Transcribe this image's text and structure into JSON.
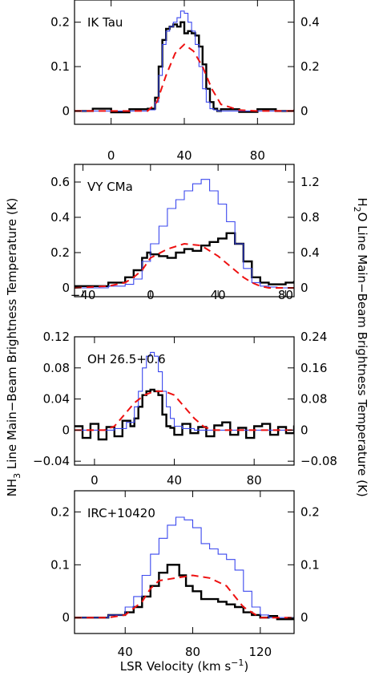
{
  "chart_data": {
    "type": "line",
    "style": {
      "nh3_color": "#000000",
      "h2o_color": "#3b48ee",
      "model_color": "#ee1111",
      "model_dash": "dashed",
      "render": "histogram-step"
    },
    "ylabel_left": {
      "before": "NH",
      "sub": "3",
      "after": " Line Main−Beam Brightness Temperature (K)"
    },
    "ylabel_right": {
      "before": "H",
      "sub": "2",
      "after": "O Line Main−Beam Brightness Temperature (K)"
    },
    "xlabel": {
      "before": "LSR Velocity (km s",
      "sup": "−1",
      "after": ")"
    },
    "panels": [
      {
        "name": "IK Tau",
        "xlim": [
          -20,
          100
        ],
        "ylim_left": [
          -0.03,
          0.25
        ],
        "ylim_right": [
          -0.06,
          0.5
        ],
        "xticks": [
          0,
          40,
          80
        ],
        "xtick_labels": [
          "0",
          "40",
          "80"
        ],
        "yticks_left": [
          0,
          0.1,
          0.2
        ],
        "ytick_labels_left": [
          "0",
          "0.1",
          "0.2"
        ],
        "yticks_right": [
          0,
          0.2,
          0.4
        ],
        "ytick_labels_right": [
          "0",
          "0.2",
          "0.4"
        ],
        "series": [
          {
            "role": "nh3",
            "x": [
              -20,
              -10,
              0,
              10,
              20,
              24,
              26,
              28,
              30,
              32,
              34,
              36,
              38,
              40,
              42,
              44,
              46,
              48,
              50,
              52,
              54,
              56,
              58,
              60,
              70,
              80,
              90,
              100
            ],
            "y": [
              0,
              0.005,
              -0.003,
              0.004,
              0.005,
              0.03,
              0.1,
              0.16,
              0.185,
              0.19,
              0.195,
              0.19,
              0.2,
              0.175,
              0.18,
              0.175,
              0.17,
              0.145,
              0.105,
              0.05,
              0.02,
              0.005,
              0,
              0.004,
              -0.002,
              0.004,
              0,
              0.003
            ]
          },
          {
            "role": "h2o",
            "x": [
              -20,
              -10,
              0,
              10,
              20,
              24,
              26,
              28,
              30,
              32,
              34,
              36,
              38,
              40,
              42,
              44,
              46,
              48,
              50,
              52,
              54,
              56,
              58,
              60,
              70,
              80,
              90,
              100
            ],
            "y": [
              0,
              0,
              0,
              0,
              0.005,
              0.04,
              0.16,
              0.3,
              0.36,
              0.38,
              0.4,
              0.42,
              0.45,
              0.44,
              0.4,
              0.36,
              0.3,
              0.2,
              0.1,
              0.04,
              0.01,
              0.005,
              0,
              0,
              0,
              0,
              0,
              0
            ]
          },
          {
            "role": "model",
            "x": [
              -20,
              0,
              20,
              25,
              30,
              35,
              40,
              45,
              50,
              55,
              60,
              70,
              80,
              100
            ],
            "y": [
              0,
              0,
              0,
              0.02,
              0.08,
              0.13,
              0.15,
              0.135,
              0.1,
              0.05,
              0.015,
              0.002,
              0,
              0
            ]
          }
        ]
      },
      {
        "name": "VY CMa",
        "xlim": [
          -45,
          85
        ],
        "ylim_left": [
          -0.05,
          0.7
        ],
        "ylim_right": [
          -0.1,
          1.4
        ],
        "xticks": [
          -40,
          0,
          40,
          80
        ],
        "xtick_labels": [
          "−40",
          "0",
          "40",
          "80"
        ],
        "yticks_left": [
          0,
          0.2,
          0.4,
          0.6
        ],
        "ytick_labels_left": [
          "0",
          "0.2",
          "0.4",
          "0.6"
        ],
        "yticks_right": [
          0,
          0.4,
          0.8,
          1.2
        ],
        "ytick_labels_right": [
          "0",
          "0.4",
          "0.8",
          "1.2"
        ],
        "series": [
          {
            "role": "nh3",
            "x": [
              -45,
              -35,
              -25,
              -15,
              -10,
              -5,
              -2,
              0,
              5,
              10,
              15,
              20,
              25,
              30,
              35,
              40,
              45,
              50,
              55,
              60,
              65,
              70,
              75,
              80,
              85
            ],
            "y": [
              0.01,
              0.01,
              0.03,
              0.06,
              0.1,
              0.17,
              0.2,
              0.19,
              0.18,
              0.17,
              0.2,
              0.22,
              0.21,
              0.24,
              0.26,
              0.28,
              0.31,
              0.25,
              0.15,
              0.06,
              0.03,
              0.02,
              0.02,
              0.03,
              0.04
            ]
          },
          {
            "role": "h2o",
            "x": [
              -45,
              -35,
              -25,
              -15,
              -10,
              -5,
              0,
              5,
              10,
              15,
              20,
              25,
              30,
              35,
              40,
              45,
              50,
              55,
              60,
              65,
              70,
              75,
              85
            ],
            "y": [
              0,
              0,
              0.02,
              0.04,
              0.1,
              0.3,
              0.5,
              0.7,
              0.9,
              1.0,
              1.1,
              1.18,
              1.23,
              1.1,
              0.95,
              0.75,
              0.5,
              0.22,
              0.06,
              0.02,
              0.01,
              0,
              0
            ]
          },
          {
            "role": "model",
            "x": [
              -45,
              -25,
              -15,
              -10,
              -5,
              0,
              10,
              20,
              30,
              40,
              50,
              55,
              60,
              65,
              70,
              85
            ],
            "y": [
              0,
              0.01,
              0.03,
              0.06,
              0.1,
              0.17,
              0.22,
              0.25,
              0.24,
              0.18,
              0.1,
              0.06,
              0.03,
              0.01,
              0,
              0
            ]
          }
        ]
      },
      {
        "name": "OH 26.5+0.6",
        "xlim": [
          -10,
          100
        ],
        "ylim_left": [
          -0.045,
          0.12
        ],
        "ylim_right": [
          -0.09,
          0.24
        ],
        "xticks": [
          0,
          40,
          80
        ],
        "xtick_labels": [
          "0",
          "40",
          "80"
        ],
        "yticks_left": [
          -0.04,
          0,
          0.04,
          0.08,
          0.12
        ],
        "ytick_labels_left": [
          "−0.04",
          "0",
          "0.04",
          "0.08",
          "0.12"
        ],
        "yticks_right": [
          -0.08,
          0,
          0.08,
          0.16,
          0.24
        ],
        "ytick_labels_right": [
          "−0.08",
          "0",
          "0.08",
          "0.16",
          "0.24"
        ],
        "series": [
          {
            "role": "nh3",
            "x": [
              -10,
              -6,
              -2,
              2,
              6,
              10,
              14,
              18,
              20,
              22,
              24,
              26,
              28,
              30,
              32,
              34,
              36,
              38,
              40,
              44,
              48,
              52,
              56,
              60,
              64,
              68,
              72,
              76,
              80,
              84,
              88,
              92,
              96,
              100
            ],
            "y": [
              0.005,
              -0.01,
              0.008,
              -0.012,
              0.004,
              -0.008,
              0.012,
              0.005,
              0.015,
              0.03,
              0.045,
              0.05,
              0.052,
              0.05,
              0.045,
              0.02,
              0.005,
              0.003,
              -0.006,
              0.008,
              -0.004,
              0.004,
              -0.008,
              0.006,
              0.01,
              -0.006,
              0.003,
              -0.01,
              0.005,
              0.008,
              -0.006,
              0.004,
              -0.004,
              0.006
            ]
          },
          {
            "role": "h2o",
            "x": [
              -10,
              0,
              10,
              16,
              20,
              22,
              24,
              26,
              28,
              30,
              32,
              34,
              36,
              38,
              40,
              44,
              50,
              60,
              80,
              100
            ],
            "y": [
              0,
              0,
              0.004,
              0.02,
              0.06,
              0.1,
              0.16,
              0.19,
              0.2,
              0.19,
              0.15,
              0.1,
              0.06,
              0.03,
              0.01,
              0.004,
              0,
              0,
              0,
              0
            ]
          },
          {
            "role": "model",
            "x": [
              -10,
              5,
              10,
              15,
              20,
              25,
              30,
              35,
              40,
              45,
              50,
              55,
              60,
              100
            ],
            "y": [
              0,
              0,
              0.005,
              0.02,
              0.035,
              0.045,
              0.05,
              0.05,
              0.045,
              0.03,
              0.015,
              0.004,
              0,
              0
            ]
          }
        ]
      },
      {
        "name": "IRC+10420",
        "xlim": [
          10,
          140
        ],
        "ylim_left": [
          -0.03,
          0.24
        ],
        "ylim_right": [
          -0.03,
          0.24
        ],
        "xticks": [
          40,
          80,
          120
        ],
        "xtick_labels": [
          "40",
          "80",
          "120"
        ],
        "yticks_left": [
          0,
          0.1,
          0.2
        ],
        "ytick_labels_left": [
          "0",
          "0.1",
          "0.2"
        ],
        "yticks_right": [
          0,
          0.1,
          0.2
        ],
        "ytick_labels_right": [
          "0",
          "0.1",
          "0.2"
        ],
        "series": [
          {
            "role": "nh3",
            "x": [
              10,
              20,
              30,
              40,
              45,
              50,
              55,
              60,
              65,
              68,
              72,
              76,
              80,
              85,
              90,
              95,
              100,
              105,
              110,
              115,
              120,
              125,
              130,
              140
            ],
            "y": [
              0,
              0,
              0.005,
              0.01,
              0.02,
              0.04,
              0.06,
              0.085,
              0.1,
              0.1,
              0.08,
              0.06,
              0.05,
              0.035,
              0.035,
              0.03,
              0.025,
              0.02,
              0.01,
              0.005,
              0,
              0.003,
              -0.003,
              0
            ]
          },
          {
            "role": "h2o",
            "x": [
              10,
              20,
              30,
              40,
              45,
              50,
              55,
              60,
              65,
              70,
              75,
              80,
              85,
              90,
              95,
              100,
              105,
              110,
              115,
              120,
              125,
              130,
              140
            ],
            "y": [
              0,
              0,
              0.005,
              0.02,
              0.04,
              0.08,
              0.12,
              0.15,
              0.175,
              0.19,
              0.185,
              0.17,
              0.14,
              0.13,
              0.12,
              0.11,
              0.09,
              0.05,
              0.02,
              0.005,
              0,
              0,
              0
            ]
          },
          {
            "role": "model",
            "x": [
              10,
              30,
              40,
              50,
              55,
              60,
              70,
              80,
              90,
              100,
              105,
              110,
              120,
              140
            ],
            "y": [
              0,
              0,
              0.005,
              0.03,
              0.055,
              0.07,
              0.075,
              0.08,
              0.075,
              0.06,
              0.04,
              0.02,
              0,
              0
            ]
          }
        ]
      }
    ]
  }
}
